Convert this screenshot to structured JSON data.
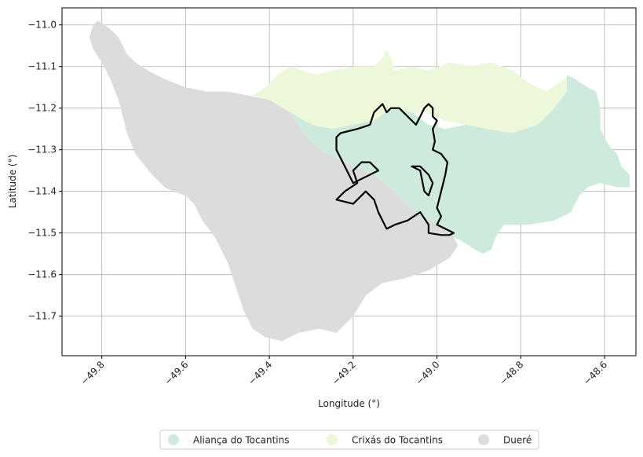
{
  "chart_data": {
    "type": "choropleth-map",
    "xlabel": "Longitude (°)",
    "ylabel": "Latitude (°)",
    "xlim": [
      -49.895,
      -48.525
    ],
    "ylim": [
      -11.795,
      -10.959
    ],
    "x_ticks": [
      -49.8,
      -49.6,
      -49.4,
      -49.2,
      -49.0,
      -48.8,
      -48.6
    ],
    "x_tick_labels": [
      "−49.8",
      "−49.6",
      "−49.4",
      "−49.2",
      "−49.0",
      "−48.8",
      "−48.6"
    ],
    "y_ticks": [
      -11.0,
      -11.1,
      -11.2,
      -11.3,
      -11.4,
      -11.5,
      -11.6,
      -11.7
    ],
    "y_tick_labels": [
      "−11.0",
      "−11.1",
      "−11.2",
      "−11.3",
      "−11.4",
      "−11.5",
      "−11.6",
      "−11.7"
    ],
    "grid": true,
    "legend_position": "bottom-center",
    "regions": [
      {
        "name": "Dueré",
        "color": "#dcdcdc",
        "polygon": [
          [
            -49.82,
            -11.0
          ],
          [
            -49.81,
            -10.99
          ],
          [
            -49.8,
            -10.995
          ],
          [
            -49.78,
            -11.01
          ],
          [
            -49.76,
            -11.03
          ],
          [
            -49.74,
            -11.07
          ],
          [
            -49.72,
            -11.09
          ],
          [
            -49.69,
            -11.11
          ],
          [
            -49.65,
            -11.13
          ],
          [
            -49.6,
            -11.15
          ],
          [
            -49.55,
            -11.16
          ],
          [
            -49.5,
            -11.16
          ],
          [
            -49.45,
            -11.17
          ],
          [
            -49.4,
            -11.18
          ],
          [
            -49.35,
            -11.21
          ],
          [
            -49.32,
            -11.25
          ],
          [
            -49.28,
            -11.3
          ],
          [
            -49.22,
            -11.33
          ],
          [
            -49.15,
            -11.36
          ],
          [
            -49.1,
            -11.4
          ],
          [
            -49.05,
            -11.45
          ],
          [
            -49.0,
            -11.48
          ],
          [
            -48.96,
            -11.51
          ],
          [
            -48.95,
            -11.53
          ],
          [
            -48.97,
            -11.56
          ],
          [
            -49.02,
            -11.59
          ],
          [
            -49.08,
            -11.61
          ],
          [
            -49.13,
            -11.62
          ],
          [
            -49.17,
            -11.65
          ],
          [
            -49.2,
            -11.7
          ],
          [
            -49.24,
            -11.74
          ],
          [
            -49.28,
            -11.73
          ],
          [
            -49.33,
            -11.74
          ],
          [
            -49.37,
            -11.76
          ],
          [
            -49.41,
            -11.75
          ],
          [
            -49.44,
            -11.73
          ],
          [
            -49.46,
            -11.69
          ],
          [
            -49.48,
            -11.63
          ],
          [
            -49.5,
            -11.57
          ],
          [
            -49.53,
            -11.51
          ],
          [
            -49.56,
            -11.47
          ],
          [
            -49.58,
            -11.43
          ],
          [
            -49.6,
            -11.41
          ],
          [
            -49.63,
            -11.4
          ],
          [
            -49.65,
            -11.39
          ],
          [
            -49.68,
            -11.36
          ],
          [
            -49.72,
            -11.31
          ],
          [
            -49.74,
            -11.26
          ],
          [
            -49.75,
            -11.22
          ],
          [
            -49.76,
            -11.18
          ],
          [
            -49.78,
            -11.13
          ],
          [
            -49.8,
            -11.09
          ],
          [
            -49.82,
            -11.06
          ],
          [
            -49.83,
            -11.03
          ]
        ]
      },
      {
        "name": "Crixás do Tocantins",
        "color": "#edf8da",
        "polygon": [
          [
            -49.44,
            -11.17
          ],
          [
            -49.41,
            -11.15
          ],
          [
            -49.38,
            -11.12
          ],
          [
            -49.35,
            -11.1
          ],
          [
            -49.32,
            -11.11
          ],
          [
            -49.29,
            -11.12
          ],
          [
            -49.25,
            -11.11
          ],
          [
            -49.2,
            -11.1
          ],
          [
            -49.15,
            -11.1
          ],
          [
            -49.13,
            -11.08
          ],
          [
            -49.12,
            -11.06
          ],
          [
            -49.11,
            -11.08
          ],
          [
            -49.1,
            -11.11
          ],
          [
            -49.06,
            -11.1
          ],
          [
            -49.02,
            -11.11
          ],
          [
            -48.97,
            -11.09
          ],
          [
            -48.92,
            -11.1
          ],
          [
            -48.87,
            -11.09
          ],
          [
            -48.82,
            -11.11
          ],
          [
            -48.78,
            -11.14
          ],
          [
            -48.74,
            -11.16
          ],
          [
            -48.71,
            -11.14
          ],
          [
            -48.69,
            -11.125
          ],
          [
            -48.69,
            -11.16
          ],
          [
            -48.72,
            -11.2
          ],
          [
            -48.76,
            -11.24
          ],
          [
            -48.82,
            -11.26
          ],
          [
            -48.88,
            -11.25
          ],
          [
            -48.93,
            -11.24
          ],
          [
            -48.98,
            -11.23
          ],
          [
            -49.03,
            -11.21
          ],
          [
            -49.08,
            -11.22
          ],
          [
            -49.13,
            -11.24
          ],
          [
            -49.2,
            -11.27
          ],
          [
            -49.28,
            -11.3
          ],
          [
            -49.32,
            -11.25
          ],
          [
            -49.35,
            -11.21
          ],
          [
            -49.4,
            -11.18
          ]
        ]
      },
      {
        "name": "Aliança do Tocantins",
        "color": "#cdeadd",
        "polygon": [
          [
            -49.35,
            -11.21
          ],
          [
            -49.3,
            -11.24
          ],
          [
            -49.25,
            -11.25
          ],
          [
            -49.2,
            -11.24
          ],
          [
            -49.15,
            -11.23
          ],
          [
            -49.11,
            -11.2
          ],
          [
            -49.06,
            -11.21
          ],
          [
            -49.02,
            -11.24
          ],
          [
            -48.98,
            -11.25
          ],
          [
            -48.93,
            -11.24
          ],
          [
            -48.88,
            -11.25
          ],
          [
            -48.82,
            -11.26
          ],
          [
            -48.76,
            -11.24
          ],
          [
            -48.72,
            -11.2
          ],
          [
            -48.69,
            -11.16
          ],
          [
            -48.69,
            -11.12
          ],
          [
            -48.67,
            -11.13
          ],
          [
            -48.64,
            -11.15
          ],
          [
            -48.62,
            -11.16
          ],
          [
            -48.61,
            -11.2
          ],
          [
            -48.61,
            -11.25
          ],
          [
            -48.59,
            -11.29
          ],
          [
            -48.57,
            -11.31
          ],
          [
            -48.56,
            -11.34
          ],
          [
            -48.54,
            -11.36
          ],
          [
            -48.54,
            -11.39
          ],
          [
            -48.57,
            -11.39
          ],
          [
            -48.61,
            -11.38
          ],
          [
            -48.64,
            -11.39
          ],
          [
            -48.66,
            -11.41
          ],
          [
            -48.68,
            -11.45
          ],
          [
            -48.72,
            -11.47
          ],
          [
            -48.78,
            -11.48
          ],
          [
            -48.84,
            -11.48
          ],
          [
            -48.86,
            -11.51
          ],
          [
            -48.87,
            -11.54
          ],
          [
            -48.89,
            -11.55
          ],
          [
            -48.91,
            -11.54
          ],
          [
            -48.94,
            -11.52
          ],
          [
            -48.96,
            -11.51
          ],
          [
            -49.0,
            -11.48
          ],
          [
            -49.05,
            -11.45
          ],
          [
            -49.1,
            -11.4
          ],
          [
            -49.15,
            -11.36
          ],
          [
            -49.22,
            -11.33
          ],
          [
            -49.28,
            -11.3
          ],
          [
            -49.32,
            -11.26
          ]
        ]
      }
    ],
    "outline": {
      "color": "#000000",
      "polygon": [
        [
          -49.23,
          -11.26
        ],
        [
          -49.19,
          -11.25
        ],
        [
          -49.16,
          -11.24
        ],
        [
          -49.15,
          -11.21
        ],
        [
          -49.13,
          -11.19
        ],
        [
          -49.12,
          -11.21
        ],
        [
          -49.11,
          -11.2
        ],
        [
          -49.09,
          -11.2
        ],
        [
          -49.07,
          -11.22
        ],
        [
          -49.05,
          -11.24
        ],
        [
          -49.03,
          -11.2
        ],
        [
          -49.02,
          -11.19
        ],
        [
          -49.01,
          -11.2
        ],
        [
          -49.01,
          -11.22
        ],
        [
          -49.0,
          -11.23
        ],
        [
          -49.01,
          -11.25
        ],
        [
          -49.005,
          -11.28
        ],
        [
          -49.01,
          -11.3
        ],
        [
          -48.99,
          -11.31
        ],
        [
          -48.975,
          -11.33
        ],
        [
          -48.98,
          -11.36
        ],
        [
          -48.99,
          -11.4
        ],
        [
          -49.0,
          -11.44
        ],
        [
          -48.99,
          -11.46
        ],
        [
          -49.0,
          -11.48
        ],
        [
          -48.98,
          -11.49
        ],
        [
          -48.96,
          -11.5
        ],
        [
          -48.97,
          -11.505
        ],
        [
          -48.99,
          -11.505
        ],
        [
          -49.02,
          -11.5
        ],
        [
          -49.02,
          -11.48
        ],
        [
          -49.04,
          -11.45
        ],
        [
          -49.07,
          -11.47
        ],
        [
          -49.1,
          -11.48
        ],
        [
          -49.12,
          -11.49
        ],
        [
          -49.14,
          -11.45
        ],
        [
          -49.15,
          -11.42
        ],
        [
          -49.17,
          -11.4
        ],
        [
          -49.2,
          -11.43
        ],
        [
          -49.24,
          -11.42
        ],
        [
          -49.22,
          -11.4
        ],
        [
          -49.19,
          -11.38
        ],
        [
          -49.2,
          -11.35
        ],
        [
          -49.18,
          -11.33
        ],
        [
          -49.16,
          -11.33
        ],
        [
          -49.14,
          -11.35
        ],
        [
          -49.18,
          -11.37
        ],
        [
          -49.2,
          -11.38
        ],
        [
          -49.22,
          -11.34
        ],
        [
          -49.24,
          -11.3
        ],
        [
          -49.24,
          -11.27
        ]
      ]
    },
    "inner_outline": {
      "color": "#000000",
      "polygon": [
        [
          -49.06,
          -11.34
        ],
        [
          -49.04,
          -11.35
        ],
        [
          -49.03,
          -11.4
        ],
        [
          -49.02,
          -11.41
        ],
        [
          -49.01,
          -11.38
        ],
        [
          -49.02,
          -11.36
        ],
        [
          -49.04,
          -11.34
        ],
        [
          -49.05,
          -11.34
        ]
      ]
    },
    "legend": [
      {
        "label": "Aliança do Tocantins",
        "color": "#cdeadd"
      },
      {
        "label": "Crixás do Tocantins",
        "color": "#edf8da"
      },
      {
        "label": "Dueré",
        "color": "#dcdcdc"
      }
    ]
  }
}
